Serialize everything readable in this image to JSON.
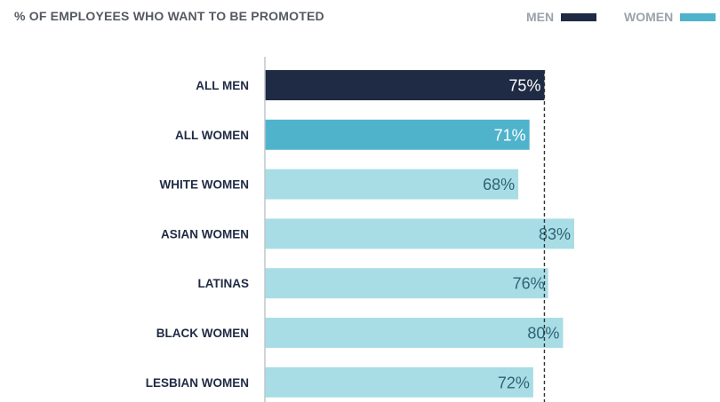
{
  "title": "% OF EMPLOYEES WHO WANT TO BE PROMOTED",
  "legend": [
    {
      "label": "MEN",
      "color": "#1f2a44"
    },
    {
      "label": "WOMEN",
      "color": "#4fb3cc"
    }
  ],
  "colors": {
    "men": "#1f2a44",
    "all_women": "#4fb3cc",
    "subgroup": "#a8dde6",
    "value_text_dark": "#2e6473",
    "value_text_light": "#ffffff",
    "axis": "#bfc5ca",
    "reference_line": "#333333"
  },
  "chart_data": {
    "type": "bar",
    "orientation": "horizontal",
    "title": "% OF EMPLOYEES WHO WANT TO BE PROMOTED",
    "categories": [
      "ALL MEN",
      "ALL WOMEN",
      "WHITE WOMEN",
      "ASIAN WOMEN",
      "LATINAS",
      "BLACK WOMEN",
      "LESBIAN WOMEN"
    ],
    "values": [
      75,
      71,
      68,
      83,
      76,
      80,
      72
    ],
    "value_labels": [
      "75%",
      "71%",
      "68%",
      "83%",
      "76%",
      "80%",
      "72%"
    ],
    "bar_groups": [
      "men",
      "all_women",
      "subgroup",
      "subgroup",
      "subgroup",
      "subgroup",
      "subgroup"
    ],
    "reference_line": {
      "value": 75,
      "style": "dashed"
    },
    "xlim": [
      0,
      83
    ],
    "grid": false,
    "legend_position": "top-right"
  }
}
